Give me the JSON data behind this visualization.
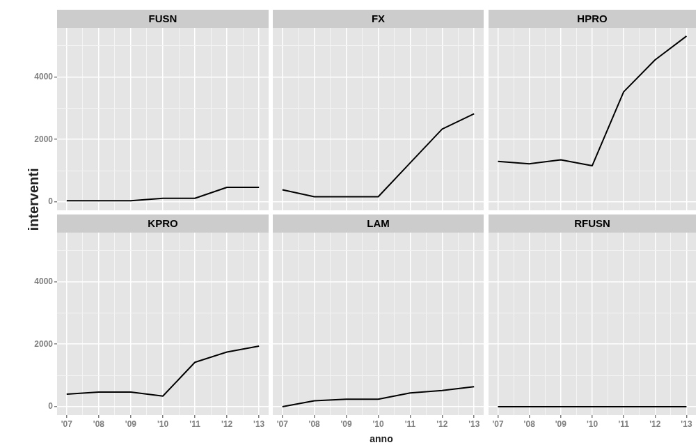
{
  "chart_data": [
    {
      "type": "line",
      "title": "FUSN",
      "ylabel": "interventi",
      "x": [
        2007,
        2008,
        2009,
        2010,
        2011,
        2012,
        2013
      ],
      "series": [
        {
          "color": "#000000",
          "values": [
            40,
            40,
            40,
            120,
            120,
            470,
            470
          ]
        }
      ],
      "xlim": [
        2006.7,
        2013.3
      ],
      "ylim": [
        -265,
        5565
      ],
      "xticks": [
        {
          "value": 2007,
          "label": null
        },
        {
          "value": 2007.5,
          "label": null
        },
        {
          "value": 2008,
          "label": null
        },
        {
          "value": 2008.5,
          "label": null
        },
        {
          "value": 2009,
          "label": null
        },
        {
          "value": 2009.5,
          "label": null
        },
        {
          "value": 2010,
          "label": null
        },
        {
          "value": 2010.5,
          "label": null
        },
        {
          "value": 2011,
          "label": null
        },
        {
          "value": 2011.5,
          "label": null
        },
        {
          "value": 2012,
          "label": null
        },
        {
          "value": 2012.5,
          "label": null
        },
        {
          "value": 2013,
          "label": null
        }
      ],
      "yticks": [
        0,
        {
          "value": 1000,
          "label": null
        },
        2000,
        {
          "value": 3000,
          "label": null
        },
        4000,
        {
          "value": 5000,
          "label": null
        }
      ],
      "grid": true,
      "tick_labels": "y"
    },
    {
      "type": "line",
      "title": "FX",
      "x": [
        2007,
        2008,
        2009,
        2010,
        2011,
        2012,
        2013
      ],
      "series": [
        {
          "color": "#000000",
          "values": [
            390,
            170,
            170,
            170,
            1250,
            2330,
            2820
          ]
        }
      ],
      "xlim": [
        2006.7,
        2013.3
      ],
      "ylim": [
        -265,
        5565
      ],
      "xticks": [
        {
          "value": 2007,
          "label": null
        },
        {
          "value": 2007.5,
          "label": null
        },
        {
          "value": 2008,
          "label": null
        },
        {
          "value": 2008.5,
          "label": null
        },
        {
          "value": 2009,
          "label": null
        },
        {
          "value": 2009.5,
          "label": null
        },
        {
          "value": 2010,
          "label": null
        },
        {
          "value": 2010.5,
          "label": null
        },
        {
          "value": 2011,
          "label": null
        },
        {
          "value": 2011.5,
          "label": null
        },
        {
          "value": 2012,
          "label": null
        },
        {
          "value": 2012.5,
          "label": null
        },
        {
          "value": 2013,
          "label": null
        }
      ],
      "yticks": [
        0,
        {
          "value": 1000,
          "label": null
        },
        2000,
        {
          "value": 3000,
          "label": null
        },
        4000,
        {
          "value": 5000,
          "label": null
        }
      ],
      "grid": true,
      "tick_labels": false
    },
    {
      "type": "line",
      "title": "HPRO",
      "x": [
        2007,
        2008,
        2009,
        2010,
        2011,
        2012,
        2013
      ],
      "series": [
        {
          "color": "#000000",
          "values": [
            1300,
            1220,
            1350,
            1160,
            3520,
            4540,
            5300
          ]
        }
      ],
      "xlim": [
        2006.7,
        2013.3
      ],
      "ylim": [
        -265,
        5565
      ],
      "xticks": [
        {
          "value": 2007,
          "label": null
        },
        {
          "value": 2007.5,
          "label": null
        },
        {
          "value": 2008,
          "label": null
        },
        {
          "value": 2008.5,
          "label": null
        },
        {
          "value": 2009,
          "label": null
        },
        {
          "value": 2009.5,
          "label": null
        },
        {
          "value": 2010,
          "label": null
        },
        {
          "value": 2010.5,
          "label": null
        },
        {
          "value": 2011,
          "label": null
        },
        {
          "value": 2011.5,
          "label": null
        },
        {
          "value": 2012,
          "label": null
        },
        {
          "value": 2012.5,
          "label": null
        },
        {
          "value": 2013,
          "label": null
        }
      ],
      "yticks": [
        0,
        {
          "value": 1000,
          "label": null
        },
        2000,
        {
          "value": 3000,
          "label": null
        },
        4000,
        {
          "value": 5000,
          "label": null
        }
      ],
      "grid": true,
      "tick_labels": false
    },
    {
      "type": "line",
      "title": "KPRO",
      "x": [
        2007,
        2008,
        2009,
        2010,
        2011,
        2012,
        2013
      ],
      "series": [
        {
          "color": "#000000",
          "values": [
            400,
            470,
            470,
            340,
            1420,
            1750,
            1940
          ]
        }
      ],
      "xlim": [
        2006.7,
        2013.3
      ],
      "ylim": [
        -265,
        5565
      ],
      "xticks": [
        {
          "value": 2007,
          "label": "'07"
        },
        {
          "value": 2007.5,
          "label": null
        },
        {
          "value": 2008,
          "label": "'08"
        },
        {
          "value": 2008.5,
          "label": null
        },
        {
          "value": 2009,
          "label": "'09"
        },
        {
          "value": 2009.5,
          "label": null
        },
        {
          "value": 2010,
          "label": "'10"
        },
        {
          "value": 2010.5,
          "label": null
        },
        {
          "value": 2011,
          "label": "'11"
        },
        {
          "value": 2011.5,
          "label": null
        },
        {
          "value": 2012,
          "label": "'12"
        },
        {
          "value": 2012.5,
          "label": null
        },
        {
          "value": 2013,
          "label": "'13"
        }
      ],
      "yticks": [
        0,
        {
          "value": 1000,
          "label": null
        },
        2000,
        {
          "value": 3000,
          "label": null
        },
        4000,
        {
          "value": 5000,
          "label": null
        }
      ],
      "grid": true
    },
    {
      "type": "line",
      "title": "LAM",
      "xlabel": "anno",
      "x": [
        2007,
        2008,
        2009,
        2010,
        2011,
        2012,
        2013
      ],
      "series": [
        {
          "color": "#000000",
          "values": [
            0,
            190,
            240,
            240,
            440,
            520,
            640
          ]
        }
      ],
      "xlim": [
        2006.7,
        2013.3
      ],
      "ylim": [
        -265,
        5565
      ],
      "xticks": [
        {
          "value": 2007,
          "label": "'07"
        },
        {
          "value": 2007.5,
          "label": null
        },
        {
          "value": 2008,
          "label": "'08"
        },
        {
          "value": 2008.5,
          "label": null
        },
        {
          "value": 2009,
          "label": "'09"
        },
        {
          "value": 2009.5,
          "label": null
        },
        {
          "value": 2010,
          "label": "'10"
        },
        {
          "value": 2010.5,
          "label": null
        },
        {
          "value": 2011,
          "label": "'11"
        },
        {
          "value": 2011.5,
          "label": null
        },
        {
          "value": 2012,
          "label": "'12"
        },
        {
          "value": 2012.5,
          "label": null
        },
        {
          "value": 2013,
          "label": "'13"
        }
      ],
      "yticks": [
        0,
        {
          "value": 1000,
          "label": null
        },
        2000,
        {
          "value": 3000,
          "label": null
        },
        4000,
        {
          "value": 5000,
          "label": null
        }
      ],
      "grid": true,
      "tick_labels": "x"
    },
    {
      "type": "line",
      "title": "RFUSN",
      "x": [
        2007,
        2008,
        2009,
        2010,
        2011,
        2012,
        2013
      ],
      "series": [
        {
          "color": "#000000",
          "values": [
            0,
            0,
            0,
            0,
            0,
            0,
            0
          ]
        }
      ],
      "xlim": [
        2006.7,
        2013.3
      ],
      "ylim": [
        -265,
        5565
      ],
      "xticks": [
        {
          "value": 2007,
          "label": "'07"
        },
        {
          "value": 2007.5,
          "label": null
        },
        {
          "value": 2008,
          "label": "'08"
        },
        {
          "value": 2008.5,
          "label": null
        },
        {
          "value": 2009,
          "label": "'09"
        },
        {
          "value": 2009.5,
          "label": null
        },
        {
          "value": 2010,
          "label": "'10"
        },
        {
          "value": 2010.5,
          "label": null
        },
        {
          "value": 2011,
          "label": "'11"
        },
        {
          "value": 2011.5,
          "label": null
        },
        {
          "value": 2012,
          "label": "'12"
        },
        {
          "value": 2012.5,
          "label": null
        },
        {
          "value": 2013,
          "label": "'13"
        }
      ],
      "yticks": [
        0,
        {
          "value": 1000,
          "label": null
        },
        2000,
        {
          "value": 3000,
          "label": null
        },
        4000,
        {
          "value": 5000,
          "label": null
        }
      ],
      "grid": true,
      "tick_labels": "x"
    }
  ]
}
